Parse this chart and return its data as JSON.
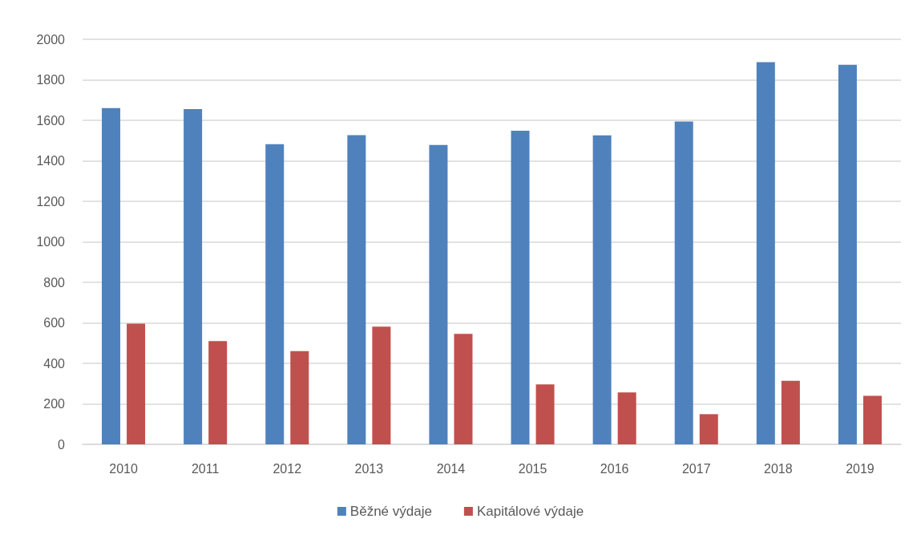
{
  "chart_data": {
    "type": "bar",
    "categories": [
      "2010",
      "2011",
      "2012",
      "2013",
      "2014",
      "2015",
      "2016",
      "2017",
      "2018",
      "2019"
    ],
    "series": [
      {
        "name": "Běžné výdaje",
        "color": "#4f81bd",
        "values": [
          1660,
          1655,
          1482,
          1527,
          1478,
          1549,
          1526,
          1594,
          1887,
          1874
        ]
      },
      {
        "name": "Kapitálové výdaje",
        "color": "#c0504d",
        "values": [
          596,
          510,
          460,
          581,
          546,
          296,
          256,
          149,
          314,
          240
        ]
      }
    ],
    "ylim": [
      0,
      2000
    ],
    "yticks": [
      0,
      200,
      400,
      600,
      800,
      1000,
      1200,
      1400,
      1600,
      1800,
      2000
    ],
    "grid": "y",
    "legend": "bottom"
  }
}
